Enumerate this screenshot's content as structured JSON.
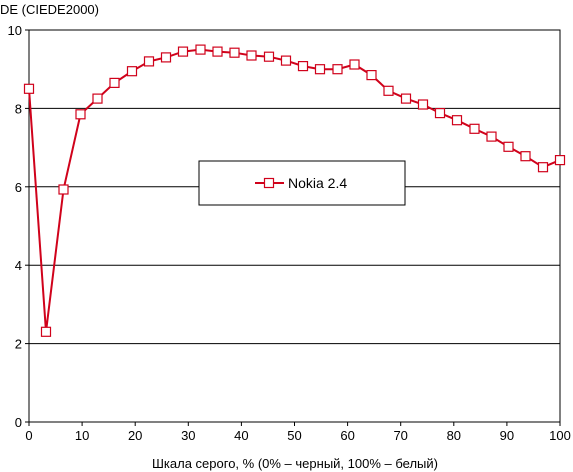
{
  "chart_data": {
    "type": "line",
    "title": "",
    "ylabel": "DE (CIEDE2000)",
    "xlabel": "Шкала серого, % (0% – черный, 100% – белый)",
    "xlim": [
      0,
      100
    ],
    "ylim": [
      0,
      10
    ],
    "xticks": [
      0,
      10,
      20,
      30,
      40,
      50,
      60,
      70,
      80,
      90,
      100
    ],
    "yticks": [
      0,
      2,
      4,
      6,
      8,
      10
    ],
    "grid": "horizontal",
    "legend": "center",
    "colors": {
      "series": "#d0021b",
      "grid": "#000000",
      "marker_fill": "#ffffff"
    },
    "series": [
      {
        "name": "Nokia 2.4",
        "x": [
          0,
          3.2,
          6.5,
          9.7,
          12.9,
          16.1,
          19.4,
          22.6,
          25.8,
          29.0,
          32.3,
          35.5,
          38.7,
          41.9,
          45.2,
          48.4,
          51.6,
          54.8,
          58.1,
          61.3,
          64.5,
          67.7,
          71.0,
          74.2,
          77.4,
          80.6,
          83.9,
          87.1,
          90.3,
          93.5,
          96.8,
          100
        ],
        "y": [
          8.5,
          2.3,
          5.93,
          7.85,
          8.25,
          8.65,
          8.95,
          9.2,
          9.3,
          9.45,
          9.5,
          9.45,
          9.42,
          9.35,
          9.32,
          9.22,
          9.08,
          9.0,
          9.0,
          9.12,
          8.85,
          8.45,
          8.25,
          8.1,
          7.88,
          7.7,
          7.48,
          7.28,
          7.02,
          6.78,
          6.5,
          6.68
        ]
      }
    ]
  }
}
